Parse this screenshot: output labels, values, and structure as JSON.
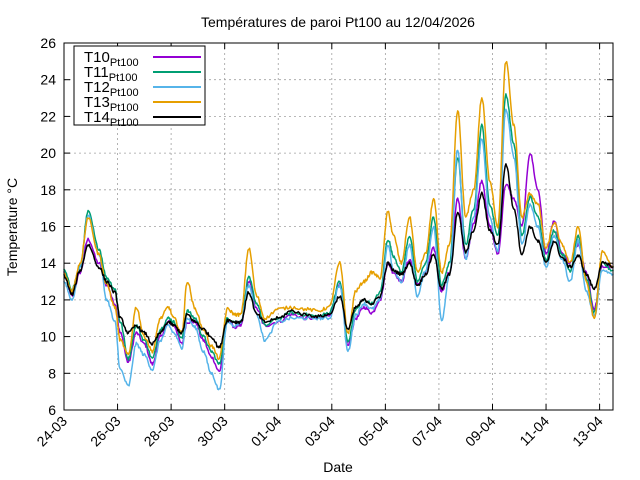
{
  "chart_data": {
    "type": "line",
    "title": "Températures de paroi Pt100 au 12/04/2026",
    "xlabel": "Date",
    "ylabel": "Temperature °C",
    "xlim": [
      0,
      20.5
    ],
    "ylim": [
      6,
      26
    ],
    "x_ticks": [
      {
        "x": 0,
        "label": "24-03"
      },
      {
        "x": 2,
        "label": "26-03"
      },
      {
        "x": 4,
        "label": "28-03"
      },
      {
        "x": 6,
        "label": "30-03"
      },
      {
        "x": 8,
        "label": "01-04"
      },
      {
        "x": 10,
        "label": "03-04"
      },
      {
        "x": 12,
        "label": "05-04"
      },
      {
        "x": 14,
        "label": "07-04"
      },
      {
        "x": 16,
        "label": "09-04"
      },
      {
        "x": 18,
        "label": "11-04"
      },
      {
        "x": 20,
        "label": "13-04"
      }
    ],
    "y_ticks": [
      6,
      8,
      10,
      12,
      14,
      16,
      18,
      20,
      22,
      24,
      26
    ],
    "grid": true,
    "legend_position": "top-left",
    "x_unit": "days since 24-03",
    "series": [
      {
        "name": "T10",
        "subscript": "Pt100",
        "color": "#9400d3",
        "x": [
          0,
          0.3,
          0.6,
          0.9,
          1.3,
          1.6,
          1.9,
          2.1,
          2.4,
          2.7,
          3.0,
          3.3,
          3.6,
          3.9,
          4.1,
          4.4,
          4.6,
          4.9,
          5.2,
          5.5,
          5.8,
          6.1,
          6.4,
          6.6,
          6.9,
          7.2,
          7.5,
          8.0,
          8.5,
          9.0,
          9.5,
          9.9,
          10.3,
          10.6,
          10.9,
          11.2,
          11.5,
          11.8,
          12.1,
          12.3,
          12.6,
          12.9,
          13.2,
          13.5,
          13.8,
          14.1,
          14.4,
          14.7,
          15.0,
          15.3,
          15.6,
          15.9,
          16.2,
          16.5,
          16.8,
          17.1,
          17.4,
          17.7,
          18.0,
          18.3,
          18.6,
          18.9,
          19.2,
          19.5,
          19.8,
          20.1,
          20.5
        ],
        "values": [
          13.5,
          12.2,
          13.5,
          15.3,
          14.0,
          12.8,
          11.8,
          10.2,
          8.6,
          10.2,
          9.6,
          8.5,
          10.0,
          10.8,
          10.6,
          9.6,
          10.8,
          10.8,
          9.8,
          8.9,
          8.1,
          10.9,
          10.5,
          10.6,
          13.0,
          11.5,
          10.6,
          10.8,
          11.2,
          11.0,
          11.0,
          11.2,
          12.8,
          9.5,
          11.0,
          11.6,
          11.3,
          12.0,
          14.0,
          13.5,
          13.0,
          14.2,
          12.8,
          13.5,
          14.8,
          12.5,
          13.5,
          17.5,
          14.2,
          16.2,
          18.5,
          16.0,
          14.5,
          18.3,
          17.5,
          16.0,
          20.0,
          18.0,
          14.5,
          16.3,
          14.5,
          14.0,
          15.0,
          13.5,
          11.5,
          13.8,
          13.8
        ]
      },
      {
        "name": "T11",
        "subscript": "Pt100",
        "color": "#009e73",
        "x": [
          0,
          0.3,
          0.6,
          0.9,
          1.3,
          1.6,
          1.9,
          2.1,
          2.4,
          2.7,
          3.0,
          3.3,
          3.6,
          3.9,
          4.1,
          4.4,
          4.6,
          4.9,
          5.2,
          5.5,
          5.8,
          6.1,
          6.4,
          6.6,
          6.9,
          7.2,
          7.5,
          8.0,
          8.5,
          9.0,
          9.5,
          9.9,
          10.3,
          10.6,
          10.9,
          11.2,
          11.5,
          11.8,
          12.1,
          12.3,
          12.6,
          12.9,
          13.2,
          13.5,
          13.8,
          14.1,
          14.4,
          14.7,
          15.0,
          15.3,
          15.6,
          15.9,
          16.2,
          16.5,
          16.8,
          17.1,
          17.4,
          17.7,
          18.0,
          18.3,
          18.6,
          18.9,
          19.2,
          19.5,
          19.8,
          20.1,
          20.5
        ],
        "values": [
          13.6,
          12.6,
          13.8,
          16.8,
          14.8,
          13.2,
          12.6,
          10.8,
          8.8,
          10.6,
          9.8,
          8.8,
          10.4,
          11.0,
          10.8,
          9.9,
          11.4,
          11.0,
          10.0,
          9.2,
          8.5,
          11.0,
          10.8,
          10.8,
          13.2,
          11.8,
          10.6,
          11.0,
          11.3,
          11.2,
          11.1,
          11.3,
          13.0,
          9.7,
          11.5,
          12.0,
          11.8,
          12.4,
          15.3,
          14.4,
          13.5,
          15.5,
          13.0,
          14.0,
          16.5,
          12.8,
          14.0,
          19.8,
          15.0,
          17.0,
          21.5,
          17.2,
          15.5,
          23.2,
          20.5,
          15.5,
          17.6,
          16.5,
          14.2,
          15.8,
          14.5,
          13.6,
          15.5,
          13.2,
          11.3,
          14.0,
          13.6
        ]
      },
      {
        "name": "T12",
        "subscript": "Pt100",
        "color": "#56b4e9",
        "x": [
          0,
          0.3,
          0.6,
          0.9,
          1.3,
          1.6,
          1.9,
          2.1,
          2.4,
          2.7,
          3.0,
          3.3,
          3.6,
          3.9,
          4.1,
          4.4,
          4.6,
          4.9,
          5.2,
          5.5,
          5.8,
          6.1,
          6.4,
          6.6,
          6.9,
          7.2,
          7.5,
          8.0,
          8.5,
          9.0,
          9.5,
          9.9,
          10.3,
          10.6,
          10.9,
          11.2,
          11.5,
          11.8,
          12.1,
          12.3,
          12.6,
          12.9,
          13.2,
          13.5,
          13.8,
          14.1,
          14.4,
          14.7,
          15.0,
          15.3,
          15.6,
          15.9,
          16.2,
          16.5,
          16.8,
          17.1,
          17.4,
          17.7,
          18.0,
          18.3,
          18.6,
          18.9,
          19.2,
          19.5,
          19.8,
          20.1,
          20.5
        ],
        "values": [
          13.0,
          12.0,
          13.8,
          16.6,
          14.5,
          12.0,
          10.8,
          8.2,
          7.3,
          9.6,
          9.0,
          8.2,
          9.8,
          10.6,
          10.2,
          9.4,
          11.0,
          10.5,
          9.2,
          8.0,
          7.1,
          10.8,
          10.6,
          10.8,
          12.8,
          11.2,
          9.8,
          10.8,
          11.0,
          11.0,
          11.0,
          11.0,
          12.8,
          9.2,
          11.2,
          11.8,
          11.5,
          12.0,
          15.0,
          13.6,
          13.0,
          15.0,
          12.2,
          13.6,
          16.0,
          10.9,
          13.4,
          20.2,
          14.2,
          16.5,
          20.8,
          16.5,
          14.6,
          22.4,
          19.8,
          15.0,
          17.2,
          16.0,
          13.8,
          15.5,
          14.2,
          13.0,
          15.2,
          12.5,
          11.1,
          13.6,
          13.4
        ]
      },
      {
        "name": "T13",
        "subscript": "Pt100",
        "color": "#e69f00",
        "x": [
          0,
          0.3,
          0.6,
          0.9,
          1.3,
          1.6,
          1.9,
          2.1,
          2.4,
          2.7,
          3.0,
          3.3,
          3.6,
          3.9,
          4.1,
          4.4,
          4.6,
          4.9,
          5.2,
          5.5,
          5.8,
          6.1,
          6.4,
          6.6,
          6.9,
          7.2,
          7.5,
          8.0,
          8.5,
          9.0,
          9.5,
          9.9,
          10.3,
          10.6,
          10.9,
          11.2,
          11.5,
          11.8,
          12.1,
          12.3,
          12.6,
          12.9,
          13.2,
          13.5,
          13.8,
          14.1,
          14.4,
          14.7,
          15.0,
          15.3,
          15.6,
          15.9,
          16.2,
          16.5,
          16.8,
          17.1,
          17.4,
          17.7,
          18.0,
          18.3,
          18.6,
          18.9,
          19.2,
          19.5,
          19.8,
          20.1,
          20.5
        ],
        "values": [
          13.4,
          12.5,
          14.0,
          16.5,
          14.5,
          12.8,
          11.6,
          9.8,
          9.0,
          11.6,
          10.0,
          9.2,
          11.0,
          11.6,
          11.0,
          10.2,
          13.0,
          11.5,
          10.4,
          9.5,
          8.8,
          11.5,
          11.2,
          11.2,
          14.8,
          12.2,
          11.0,
          11.5,
          11.6,
          11.5,
          11.4,
          11.6,
          14.0,
          10.2,
          12.5,
          13.0,
          13.5,
          13.2,
          16.8,
          15.5,
          14.0,
          16.5,
          13.5,
          14.5,
          17.5,
          13.5,
          15.0,
          22.3,
          16.5,
          18.0,
          23.0,
          18.5,
          16.0,
          25.0,
          21.5,
          16.5,
          17.8,
          17.2,
          14.8,
          16.2,
          15.0,
          14.0,
          16.0,
          13.0,
          11.0,
          14.6,
          13.8
        ]
      },
      {
        "name": "T14",
        "subscript": "Pt100",
        "color": "#000000",
        "x": [
          0,
          0.3,
          0.6,
          0.9,
          1.3,
          1.6,
          1.9,
          2.1,
          2.4,
          2.7,
          3.0,
          3.3,
          3.6,
          3.9,
          4.1,
          4.4,
          4.6,
          4.9,
          5.2,
          5.5,
          5.8,
          6.1,
          6.4,
          6.6,
          6.9,
          7.2,
          7.5,
          8.0,
          8.5,
          9.0,
          9.5,
          9.9,
          10.3,
          10.6,
          10.9,
          11.2,
          11.5,
          11.8,
          12.1,
          12.3,
          12.6,
          12.9,
          13.2,
          13.5,
          13.8,
          14.1,
          14.4,
          14.7,
          15.0,
          15.3,
          15.6,
          15.9,
          16.2,
          16.5,
          16.8,
          17.1,
          17.4,
          17.7,
          18.0,
          18.3,
          18.6,
          18.9,
          19.2,
          19.5,
          19.8,
          20.1,
          20.5
        ],
        "values": [
          13.3,
          12.3,
          13.6,
          15.0,
          13.8,
          13.0,
          12.4,
          11.0,
          10.2,
          10.6,
          10.2,
          9.6,
          10.2,
          10.8,
          10.6,
          10.2,
          11.2,
          10.8,
          10.4,
          10.0,
          9.4,
          10.9,
          10.8,
          10.8,
          12.4,
          11.2,
          10.8,
          11.0,
          11.4,
          11.2,
          11.1,
          11.2,
          12.2,
          10.4,
          11.6,
          12.0,
          11.8,
          12.2,
          14.0,
          13.6,
          13.4,
          14.0,
          12.8,
          13.4,
          14.5,
          12.6,
          13.4,
          16.8,
          14.6,
          15.8,
          17.8,
          15.8,
          15.0,
          19.4,
          17.0,
          14.5,
          16.0,
          15.2,
          14.0,
          15.2,
          14.3,
          13.8,
          14.4,
          13.4,
          12.6,
          14.0,
          13.8
        ]
      }
    ]
  }
}
